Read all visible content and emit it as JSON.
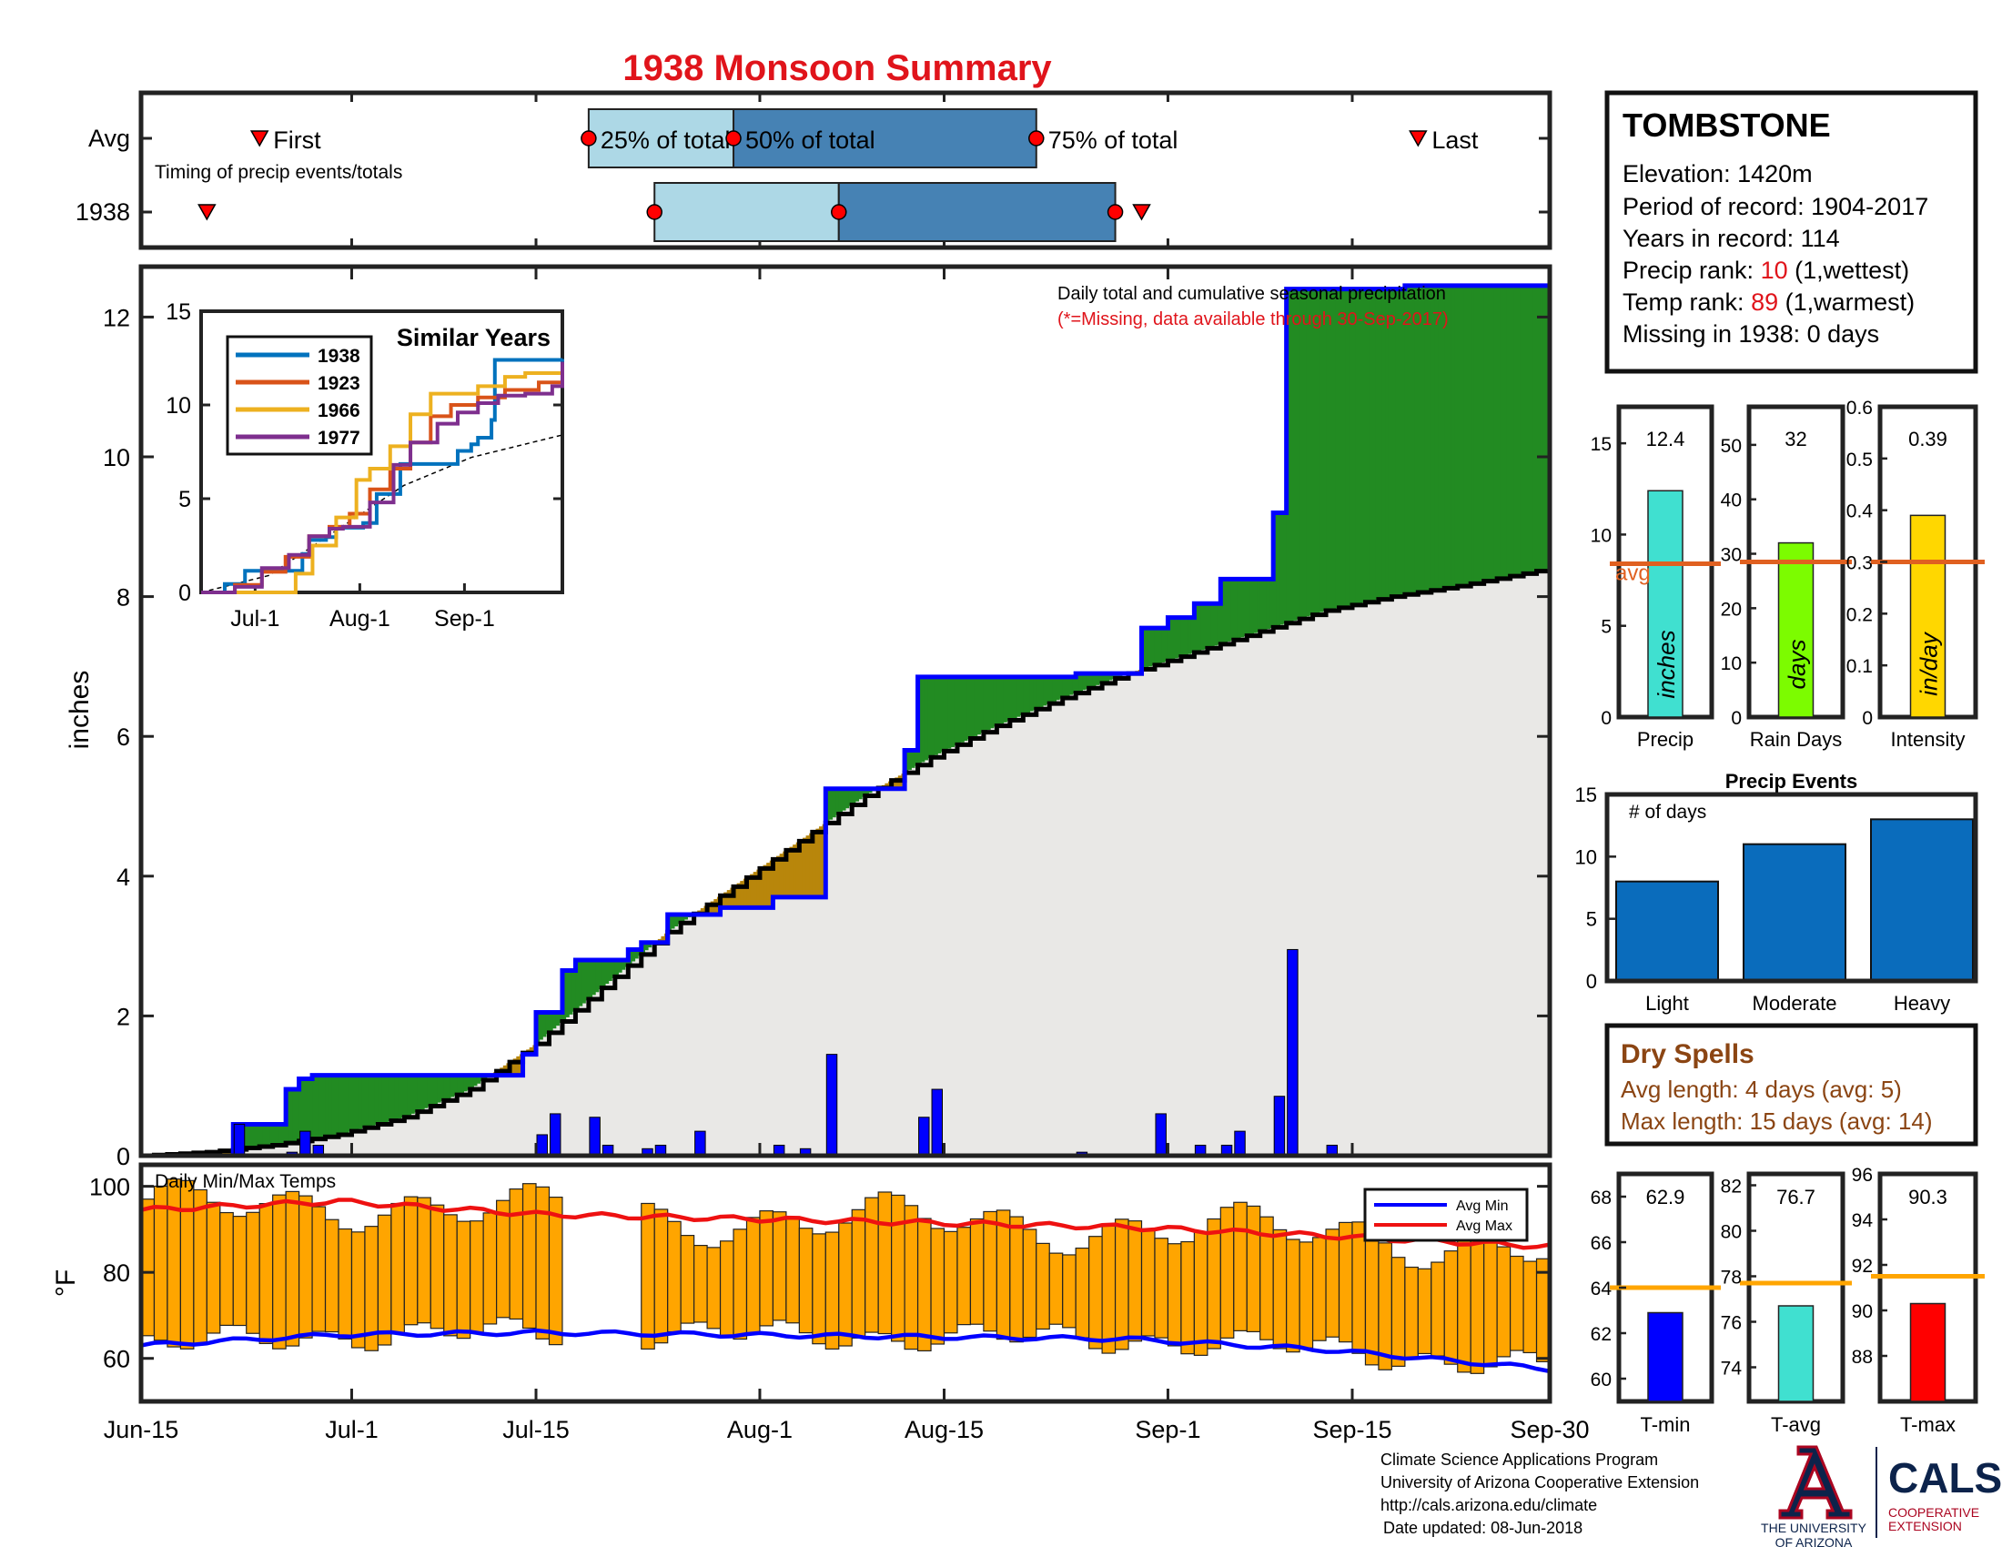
{
  "title": "1938 Monsoon Summary",
  "colors": {
    "title": "#e0141b",
    "frame": "#222222",
    "green": "#228b22",
    "brown": "#b8860b",
    "grey": "#e9e8e6",
    "blue": "#0000ff",
    "red": "#ee1111",
    "orange": "#ffa500",
    "lightblue": "#add8e6",
    "steelblue": "#4682b4",
    "barblue": "#0a6cbc",
    "orangeline": "#e06020",
    "turquoise": "#40e0d0",
    "lime": "#7cfc00",
    "gold": "#ffd700",
    "brownText": "#8b4513"
  },
  "timing": {
    "row_labels": [
      "Avg",
      "1938"
    ],
    "note": "Timing of precip events/totals",
    "first_label": "First",
    "last_label": "Last",
    "pct_labels": [
      "25% of total",
      "50% of total",
      "75% of total"
    ],
    "avg": {
      "first": 9,
      "p25": 34,
      "p50": 45,
      "p75": 68,
      "last": 97
    },
    "yr": {
      "first": 5,
      "p25": 39,
      "p50": 53,
      "p75": 74,
      "last": 76
    }
  },
  "station": {
    "name": "TOMBSTONE",
    "elevation": "Elevation: 1420m",
    "period": "Period of record: 1904-2017",
    "years": "Years in record: 114",
    "precip_rank_prefix": "Precip rank: ",
    "precip_rank_value": "10",
    "precip_rank_suffix": " (1,wettest)",
    "temp_rank_prefix": "Temp rank: ",
    "temp_rank_value": "89",
    "temp_rank_suffix": " (1,warmest)",
    "missing": "Missing in 1938: 0 days"
  },
  "dry_spells": {
    "title": "Dry Spells",
    "avg_length": "Avg length: 4 days (avg: 5)",
    "max_length": "Max length: 15 days (avg: 14)"
  },
  "credits": {
    "line1": "Climate Science Applications Program",
    "line2": "University of Arizona Cooperative Extension",
    "line3": "http://cals.arizona.edu/climate",
    "line4": "Date updated: 08-Jun-2018",
    "logo_text_1": "THE UNIVERSITY",
    "logo_text_2": "OF ARIZONA",
    "cals": "CALS",
    "cals_sub1": "COOPERATIVE",
    "cals_sub2": "EXTENSION"
  },
  "chart_data": [
    {
      "type": "area",
      "name": "main-precip",
      "note": "Daily total and cumulative seasonal precipitation",
      "missing_note": "(*=Missing, data available through 30-Sep-2017)",
      "ylabel": "inches",
      "ylim": [
        0,
        13
      ],
      "yticks": [
        0,
        2,
        4,
        6,
        8,
        10,
        12
      ],
      "x_start": "Jun-15",
      "x_end": "Sep-30",
      "x_ticks": [
        {
          "label": "Jun-15",
          "day": 0
        },
        {
          "label": "Jul-1",
          "day": 16
        },
        {
          "label": "Jul-15",
          "day": 30
        },
        {
          "label": "Aug-1",
          "day": 47
        },
        {
          "label": "Aug-15",
          "day": 61
        },
        {
          "label": "Sep-1",
          "day": 78
        },
        {
          "label": "Sep-15",
          "day": 92
        },
        {
          "label": "Sep-30",
          "day": 107
        }
      ],
      "cumulative_1938": [
        [
          0,
          0
        ],
        [
          7,
          0
        ],
        [
          7,
          0.45
        ],
        [
          11,
          0.45
        ],
        [
          11,
          0.95
        ],
        [
          12,
          0.95
        ],
        [
          12,
          1.1
        ],
        [
          13,
          1.1
        ],
        [
          13,
          1.15
        ],
        [
          29,
          1.15
        ],
        [
          29,
          1.45
        ],
        [
          30,
          1.45
        ],
        [
          30,
          2.05
        ],
        [
          32,
          2.05
        ],
        [
          32,
          2.65
        ],
        [
          33,
          2.65
        ],
        [
          33,
          2.8
        ],
        [
          37,
          2.8
        ],
        [
          37,
          2.95
        ],
        [
          38,
          2.95
        ],
        [
          38,
          3.05
        ],
        [
          40,
          3.05
        ],
        [
          40,
          3.45
        ],
        [
          44,
          3.45
        ],
        [
          44,
          3.55
        ],
        [
          48,
          3.55
        ],
        [
          48,
          3.7
        ],
        [
          52,
          3.7
        ],
        [
          52,
          5.25
        ],
        [
          58,
          5.25
        ],
        [
          58,
          5.8
        ],
        [
          59,
          5.8
        ],
        [
          59,
          6.85
        ],
        [
          71,
          6.85
        ],
        [
          71,
          6.9
        ],
        [
          76,
          6.9
        ],
        [
          76,
          7.55
        ],
        [
          78,
          7.55
        ],
        [
          78,
          7.7
        ],
        [
          80,
          7.7
        ],
        [
          80,
          7.9
        ],
        [
          82,
          7.9
        ],
        [
          82,
          8.25
        ],
        [
          86,
          8.25
        ],
        [
          86,
          9.2
        ],
        [
          87,
          9.2
        ],
        [
          87,
          12.4
        ],
        [
          96,
          12.4
        ],
        [
          96,
          12.45
        ],
        [
          107,
          12.45
        ]
      ],
      "average_curve": [
        [
          0,
          0
        ],
        [
          5,
          0.05
        ],
        [
          10,
          0.15
        ],
        [
          15,
          0.3
        ],
        [
          20,
          0.55
        ],
        [
          25,
          0.95
        ],
        [
          30,
          1.6
        ],
        [
          35,
          2.4
        ],
        [
          40,
          3.2
        ],
        [
          45,
          3.85
        ],
        [
          50,
          4.5
        ],
        [
          55,
          5.15
        ],
        [
          60,
          5.7
        ],
        [
          65,
          6.15
        ],
        [
          70,
          6.55
        ],
        [
          75,
          6.9
        ],
        [
          80,
          7.2
        ],
        [
          85,
          7.5
        ],
        [
          90,
          7.8
        ],
        [
          95,
          8.0
        ],
        [
          100,
          8.15
        ],
        [
          107,
          8.4
        ]
      ],
      "daily_bars": [
        {
          "day": 7,
          "value": 0.45
        },
        {
          "day": 11,
          "value": 0.05
        },
        {
          "day": 12,
          "value": 0.35
        },
        {
          "day": 13,
          "value": 0.15
        },
        {
          "day": 30,
          "value": 0.3
        },
        {
          "day": 31,
          "value": 0.6
        },
        {
          "day": 34,
          "value": 0.55
        },
        {
          "day": 35,
          "value": 0.15
        },
        {
          "day": 38,
          "value": 0.1
        },
        {
          "day": 39,
          "value": 0.15
        },
        {
          "day": 42,
          "value": 0.35
        },
        {
          "day": 48,
          "value": 0.15
        },
        {
          "day": 50,
          "value": 0.1
        },
        {
          "day": 52,
          "value": 1.45
        },
        {
          "day": 59,
          "value": 0.55
        },
        {
          "day": 60,
          "value": 0.95
        },
        {
          "day": 71,
          "value": 0.05
        },
        {
          "day": 77,
          "value": 0.6
        },
        {
          "day": 80,
          "value": 0.15
        },
        {
          "day": 82,
          "value": 0.15
        },
        {
          "day": 83,
          "value": 0.35
        },
        {
          "day": 86,
          "value": 0.85
        },
        {
          "day": 87,
          "value": 2.95
        },
        {
          "day": 90,
          "value": 0.15
        }
      ]
    },
    {
      "type": "line",
      "name": "similar-years",
      "title": "Similar Years",
      "ylim": [
        0,
        15
      ],
      "yticks": [
        0,
        5,
        10,
        15
      ],
      "x_ticks": [
        {
          "label": "Jul-1",
          "day": 16
        },
        {
          "label": "Aug-1",
          "day": 47
        },
        {
          "label": "Sep-1",
          "day": 78
        }
      ],
      "series": [
        {
          "name": "1938",
          "color": "#0072bd",
          "points": [
            [
              0,
              0
            ],
            [
              7,
              0.45
            ],
            [
              13,
              1.15
            ],
            [
              29,
              1.15
            ],
            [
              30,
              2.05
            ],
            [
              32,
              2.8
            ],
            [
              37,
              2.95
            ],
            [
              40,
              3.45
            ],
            [
              48,
              3.7
            ],
            [
              52,
              5.25
            ],
            [
              59,
              6.85
            ],
            [
              71,
              6.85
            ],
            [
              76,
              7.55
            ],
            [
              80,
              7.9
            ],
            [
              82,
              8.25
            ],
            [
              86,
              9.2
            ],
            [
              87,
              12.4
            ],
            [
              107,
              12.45
            ]
          ]
        },
        {
          "name": "1923",
          "color": "#d95319",
          "points": [
            [
              0,
              0
            ],
            [
              10,
              0.4
            ],
            [
              18,
              1.1
            ],
            [
              25,
              1.9
            ],
            [
              32,
              3.0
            ],
            [
              38,
              3.5
            ],
            [
              44,
              4.2
            ],
            [
              50,
              5.5
            ],
            [
              56,
              6.6
            ],
            [
              62,
              8.0
            ],
            [
              68,
              9.4
            ],
            [
              74,
              10.0
            ],
            [
              82,
              10.4
            ],
            [
              90,
              10.8
            ],
            [
              100,
              11.2
            ],
            [
              107,
              12.0
            ]
          ]
        },
        {
          "name": "1966",
          "color": "#edb120",
          "points": [
            [
              0,
              0
            ],
            [
              26,
              0
            ],
            [
              28,
              1.0
            ],
            [
              33,
              2.5
            ],
            [
              40,
              4.0
            ],
            [
              46,
              6.0
            ],
            [
              50,
              6.6
            ],
            [
              56,
              7.8
            ],
            [
              62,
              9.5
            ],
            [
              68,
              10.6
            ],
            [
              78,
              10.6
            ],
            [
              82,
              11.0
            ],
            [
              90,
              11.5
            ],
            [
              96,
              11.7
            ],
            [
              107,
              11.7
            ]
          ]
        },
        {
          "name": "1977",
          "color": "#7e2f8e",
          "points": [
            [
              0,
              0
            ],
            [
              10,
              0.3
            ],
            [
              18,
              1.3
            ],
            [
              26,
              2.0
            ],
            [
              32,
              3.0
            ],
            [
              38,
              3.4
            ],
            [
              42,
              3.5
            ],
            [
              50,
              4.8
            ],
            [
              57,
              6.8
            ],
            [
              62,
              8.0
            ],
            [
              70,
              9.0
            ],
            [
              76,
              9.6
            ],
            [
              82,
              10.1
            ],
            [
              88,
              10.5
            ],
            [
              96,
              10.6
            ],
            [
              100,
              10.6
            ],
            [
              104,
              11.0
            ],
            [
              107,
              12.3
            ]
          ]
        }
      ],
      "average_dashed": [
        [
          0,
          0
        ],
        [
          20,
          0.9
        ],
        [
          40,
          3.3
        ],
        [
          60,
          5.7
        ],
        [
          80,
          7.2
        ],
        [
          107,
          8.4
        ]
      ]
    },
    {
      "type": "bar",
      "name": "daily-temps",
      "title": "Daily Min/Max Temps",
      "ylabel": "°F",
      "ylim": [
        50,
        105
      ],
      "yticks": [
        60,
        80,
        100
      ],
      "legend": [
        {
          "name": "Avg Min",
          "color": "#0000ff"
        },
        {
          "name": "Avg Max",
          "color": "#ee1111"
        }
      ],
      "legend_position": "top-right",
      "missing_range": [
        32,
        38
      ],
      "avg_max_curve": [
        [
          0,
          94.5
        ],
        [
          15,
          96.5
        ],
        [
          30,
          93.5
        ],
        [
          45,
          92.5
        ],
        [
          60,
          91.5
        ],
        [
          75,
          90.5
        ],
        [
          90,
          88.5
        ],
        [
          107,
          86
        ]
      ],
      "avg_min_curve": [
        [
          0,
          63
        ],
        [
          15,
          65.5
        ],
        [
          30,
          66
        ],
        [
          45,
          65.5
        ],
        [
          60,
          65
        ],
        [
          75,
          64.5
        ],
        [
          90,
          62
        ],
        [
          107,
          57.5
        ]
      ]
    },
    {
      "type": "bar",
      "name": "precip-summary",
      "categories": [
        "Precip",
        "Rain Days",
        "Intensity"
      ],
      "panels": [
        {
          "label": "Precip",
          "value": 12.4,
          "value_text": "12.4",
          "avg": 8.4,
          "ylim": [
            0,
            17
          ],
          "yticks": [
            0,
            5,
            10,
            15
          ],
          "unit": "inches",
          "color": "#40e0d0",
          "avg_label": "avg"
        },
        {
          "label": "Rain Days",
          "value": 32,
          "value_text": "32",
          "avg": 28.5,
          "ylim": [
            0,
            57
          ],
          "yticks": [
            0,
            10,
            20,
            30,
            40,
            50
          ],
          "unit": "days",
          "color": "#7cfc00"
        },
        {
          "label": "Intensity",
          "value": 0.39,
          "value_text": "0.39",
          "avg": 0.3,
          "ylim": [
            0,
            0.6
          ],
          "yticks": [
            0,
            0.1,
            0.2,
            0.3,
            0.4,
            0.5,
            0.6
          ],
          "unit": "in/day",
          "color": "#ffd700"
        }
      ]
    },
    {
      "type": "bar",
      "name": "precip-events",
      "title": "Precip Events",
      "ylabel": "# of days",
      "categories": [
        "Light",
        "Moderate",
        "Heavy"
      ],
      "values": [
        8,
        11,
        13
      ],
      "ylim": [
        0,
        15
      ],
      "yticks": [
        0,
        5,
        10,
        15
      ]
    },
    {
      "type": "bar",
      "name": "temp-summary",
      "categories": [
        "T-min",
        "T-avg",
        "T-max"
      ],
      "panels": [
        {
          "label": "T-min",
          "value": 62.9,
          "value_text": "62.9",
          "avg": 64,
          "ylim": [
            59,
            69
          ],
          "yticks": [
            60,
            62,
            64,
            66,
            68
          ],
          "color": "#0000ff"
        },
        {
          "label": "T-avg",
          "value": 76.7,
          "value_text": "76.7",
          "avg": 77.7,
          "ylim": [
            72.5,
            82.5
          ],
          "yticks": [
            74,
            76,
            78,
            80,
            82
          ],
          "color": "#40e0d0"
        },
        {
          "label": "T-max",
          "value": 90.3,
          "value_text": "90.3",
          "avg": 91.5,
          "ylim": [
            86,
            96
          ],
          "yticks": [
            88,
            90,
            92,
            94,
            96
          ],
          "color": "#ff0000"
        }
      ]
    }
  ]
}
